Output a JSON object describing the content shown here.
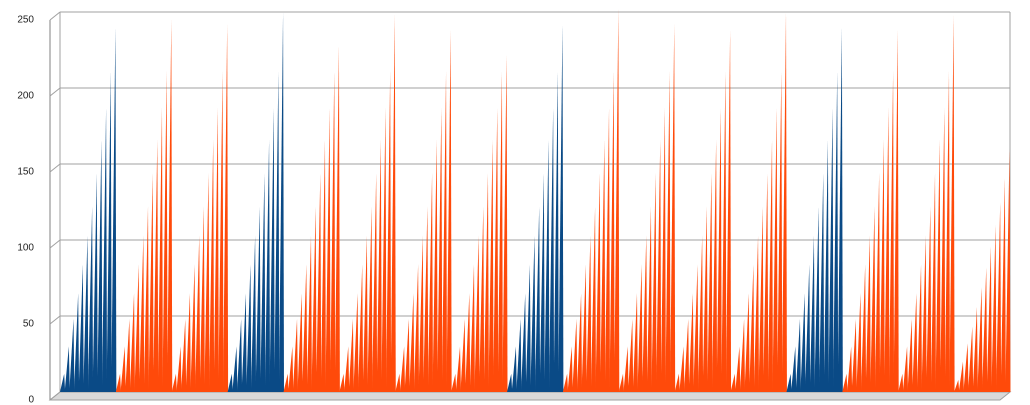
{
  "chart_data": {
    "type": "spike",
    "ylim": [
      0,
      250
    ],
    "yticks": [
      0,
      50,
      100,
      150,
      200,
      250
    ],
    "grid": true,
    "series": [
      {
        "color": "#0a4a86",
        "values": [
          12,
          30,
          48,
          65,
          84,
          103,
          122,
          144,
          166,
          187,
          211,
          240,
          null,
          null,
          null,
          null,
          null,
          null,
          null,
          null,
          null,
          null,
          null,
          null,
          null,
          null,
          null,
          null,
          null,
          null,
          null,
          null,
          null,
          null,
          null,
          null,
          12,
          30,
          48,
          65,
          84,
          103,
          122,
          144,
          166,
          187,
          211,
          250,
          null,
          null,
          null,
          null,
          null,
          null,
          null,
          null,
          null,
          null,
          null,
          null,
          null,
          null,
          null,
          null,
          null,
          null,
          null,
          null,
          null,
          null,
          null,
          null,
          null,
          null,
          null,
          null,
          null,
          null,
          null,
          null,
          null,
          null,
          null,
          null,
          null,
          null,
          null,
          null,
          null,
          null,
          null,
          null,
          null,
          null,
          null,
          null,
          12,
          30,
          48,
          65,
          84,
          103,
          122,
          144,
          166,
          187,
          211,
          242,
          null,
          null,
          null,
          null,
          null,
          null,
          null,
          null,
          null,
          null,
          null,
          null,
          null,
          null,
          null,
          null,
          null,
          null,
          null,
          null,
          null,
          null,
          null,
          null,
          null,
          null,
          null,
          null,
          null,
          null,
          null,
          null,
          null,
          null,
          null,
          null,
          null,
          null,
          null,
          null,
          null,
          null,
          null,
          null,
          null,
          null,
          null,
          null,
          12,
          30,
          48,
          65,
          84,
          103,
          122,
          144,
          166,
          187,
          211,
          240,
          null,
          null,
          null,
          null,
          null,
          null,
          null,
          null,
          null,
          null,
          null,
          null,
          null,
          null,
          null,
          null,
          null,
          null,
          null,
          null,
          null,
          null,
          null,
          null,
          null,
          null,
          null,
          null,
          null,
          null,
          null,
          null,
          null,
          null,
          null,
          null
        ]
      },
      {
        "color": "#ff4a0a",
        "values": [
          null,
          null,
          null,
          null,
          null,
          null,
          null,
          null,
          null,
          null,
          null,
          null,
          12,
          30,
          48,
          65,
          84,
          103,
          122,
          144,
          166,
          187,
          211,
          245,
          12,
          30,
          48,
          65,
          84,
          103,
          122,
          144,
          166,
          187,
          211,
          242,
          null,
          null,
          null,
          null,
          null,
          null,
          null,
          null,
          null,
          null,
          null,
          null,
          12,
          30,
          48,
          65,
          84,
          103,
          122,
          144,
          166,
          187,
          211,
          228,
          12,
          30,
          48,
          65,
          84,
          103,
          122,
          144,
          166,
          187,
          211,
          248,
          12,
          30,
          48,
          65,
          84,
          103,
          122,
          144,
          166,
          187,
          211,
          238,
          12,
          30,
          48,
          65,
          84,
          103,
          122,
          144,
          166,
          187,
          211,
          222,
          null,
          null,
          null,
          null,
          null,
          null,
          null,
          null,
          null,
          null,
          null,
          null,
          12,
          30,
          48,
          65,
          84,
          103,
          122,
          144,
          166,
          187,
          211,
          252,
          12,
          30,
          48,
          65,
          84,
          103,
          122,
          144,
          166,
          187,
          211,
          242,
          12,
          30,
          48,
          65,
          84,
          103,
          122,
          144,
          166,
          187,
          211,
          238,
          12,
          30,
          48,
          65,
          84,
          103,
          122,
          144,
          166,
          187,
          211,
          250,
          null,
          null,
          null,
          null,
          null,
          null,
          null,
          null,
          null,
          null,
          null,
          null,
          12,
          30,
          48,
          65,
          84,
          103,
          122,
          144,
          166,
          187,
          211,
          238,
          12,
          30,
          48,
          65,
          84,
          103,
          122,
          144,
          166,
          187,
          211,
          248,
          8,
          20,
          32,
          43,
          56,
          69,
          82,
          96,
          110,
          125,
          141,
          160
        ]
      }
    ]
  }
}
